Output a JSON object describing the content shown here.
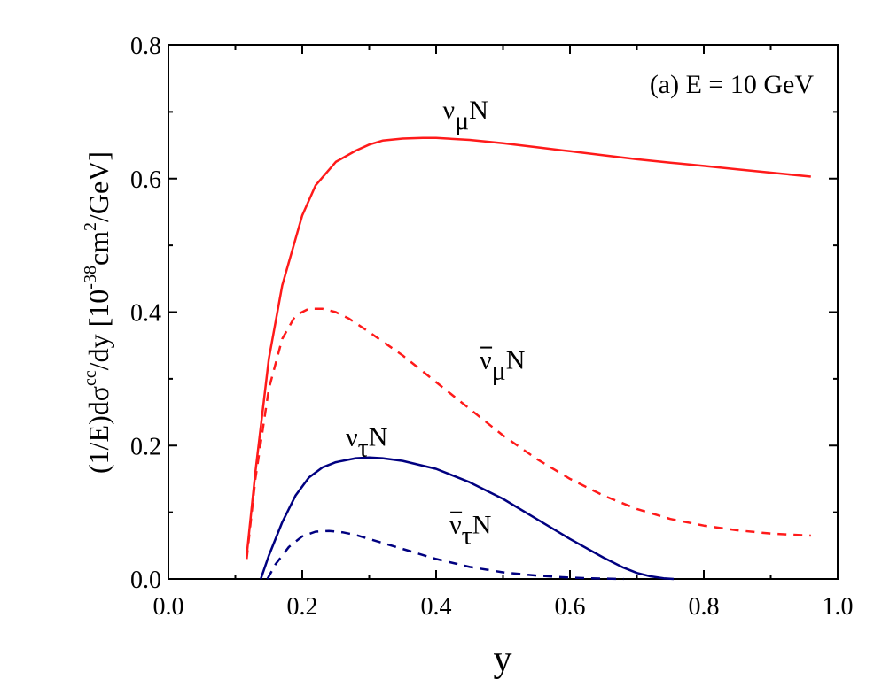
{
  "chart_data": {
    "type": "line",
    "annotation": "(a) E = 10 GeV",
    "xlabel": "y",
    "ylabel": {
      "prefix": "(1/E)dσ",
      "superscript1": "cc",
      "middle": "/dy [10",
      "superscript2": "-38",
      "middle2": "cm",
      "superscript3": "2",
      "suffix": "/GeV]"
    },
    "xlim": [
      0.0,
      1.0
    ],
    "ylim": [
      0.0,
      0.8
    ],
    "x_ticks": [
      "0.0",
      "0.2",
      "0.4",
      "0.6",
      "0.8",
      "1.0"
    ],
    "y_ticks": [
      "0.0",
      "0.2",
      "0.4",
      "0.6",
      "0.8"
    ],
    "grid": false,
    "colors": {
      "red": "#ff1a1a",
      "blue": "#000080"
    },
    "series": [
      {
        "label_base": "ν",
        "label_sub": "μ",
        "label_suffix": "N",
        "label_bar": false,
        "color": "#ff1a1a",
        "dash": "solid",
        "x": [
          0.117,
          0.13,
          0.15,
          0.17,
          0.2,
          0.22,
          0.25,
          0.28,
          0.3,
          0.32,
          0.35,
          0.38,
          0.4,
          0.45,
          0.5,
          0.55,
          0.6,
          0.65,
          0.7,
          0.75,
          0.8,
          0.85,
          0.9,
          0.96
        ],
        "y": [
          0.035,
          0.16,
          0.33,
          0.44,
          0.545,
          0.59,
          0.625,
          0.642,
          0.651,
          0.657,
          0.66,
          0.661,
          0.661,
          0.658,
          0.653,
          0.647,
          0.641,
          0.635,
          0.629,
          0.624,
          0.619,
          0.614,
          0.609,
          0.603
        ],
        "label_pos": [
          0.41,
          0.69
        ]
      },
      {
        "label_base": "ν",
        "label_sub": "μ",
        "label_suffix": "N",
        "label_bar": true,
        "color": "#ff1a1a",
        "dash": "dashed",
        "x": [
          0.117,
          0.13,
          0.15,
          0.17,
          0.19,
          0.21,
          0.23,
          0.25,
          0.27,
          0.3,
          0.35,
          0.4,
          0.45,
          0.5,
          0.55,
          0.6,
          0.65,
          0.7,
          0.75,
          0.8,
          0.85,
          0.9,
          0.96
        ],
        "y": [
          0.03,
          0.15,
          0.285,
          0.36,
          0.395,
          0.405,
          0.405,
          0.4,
          0.39,
          0.37,
          0.335,
          0.295,
          0.255,
          0.215,
          0.18,
          0.15,
          0.125,
          0.105,
          0.09,
          0.08,
          0.073,
          0.068,
          0.065
        ],
        "label_pos": [
          0.465,
          0.315
        ]
      },
      {
        "label_base": "ν",
        "label_sub": "τ",
        "label_suffix": "N",
        "label_bar": false,
        "color": "#000080",
        "dash": "solid",
        "x": [
          0.138,
          0.15,
          0.17,
          0.19,
          0.21,
          0.23,
          0.25,
          0.28,
          0.3,
          0.32,
          0.35,
          0.4,
          0.45,
          0.5,
          0.55,
          0.6,
          0.65,
          0.68,
          0.7,
          0.72,
          0.74,
          0.755
        ],
        "y": [
          0.0,
          0.035,
          0.085,
          0.125,
          0.152,
          0.167,
          0.175,
          0.181,
          0.182,
          0.181,
          0.177,
          0.165,
          0.145,
          0.12,
          0.09,
          0.06,
          0.032,
          0.017,
          0.009,
          0.004,
          0.001,
          0.0
        ],
        "label_pos": [
          0.265,
          0.2
        ]
      },
      {
        "label_base": "ν",
        "label_sub": "τ",
        "label_suffix": "N",
        "label_bar": true,
        "color": "#000080",
        "dash": "dashed",
        "x": [
          0.148,
          0.16,
          0.18,
          0.2,
          0.22,
          0.24,
          0.26,
          0.28,
          0.3,
          0.35,
          0.4,
          0.45,
          0.5,
          0.55,
          0.6,
          0.65,
          0.68
        ],
        "y": [
          0.0,
          0.022,
          0.048,
          0.064,
          0.071,
          0.072,
          0.07,
          0.066,
          0.06,
          0.045,
          0.03,
          0.018,
          0.01,
          0.005,
          0.002,
          0.0005,
          0.0
        ],
        "label_pos": [
          0.42,
          0.068
        ]
      }
    ]
  }
}
